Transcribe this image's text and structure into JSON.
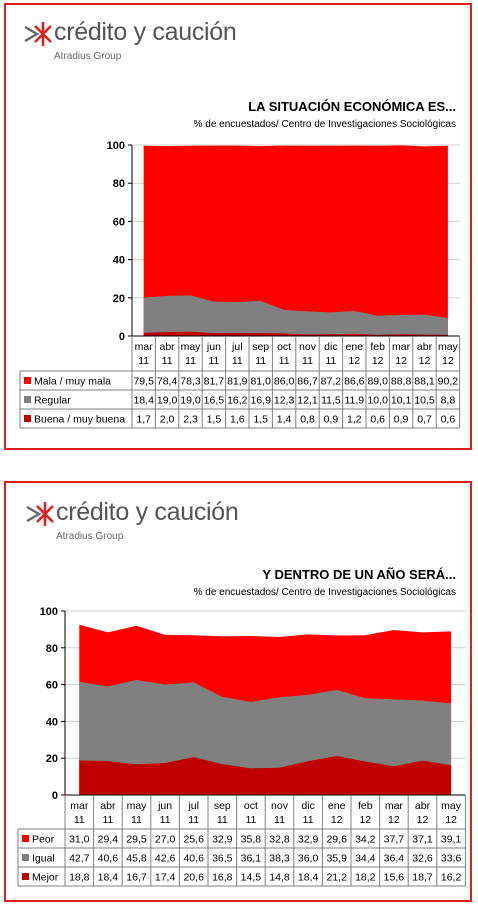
{
  "charts": [
    {
      "logo": {
        "name": "crédito y caución",
        "group": "Atradius Group"
      },
      "title": "LA SITUACIÓN ECONÓMICA ES...",
      "subtitle": "% de encuestados/ Centro de Investigaciones Sociológicas",
      "categories": [
        [
          "mar",
          "11"
        ],
        [
          "abr",
          "11"
        ],
        [
          "may",
          "11"
        ],
        [
          "jun",
          "11"
        ],
        [
          "jul",
          "11"
        ],
        [
          "sep",
          "11"
        ],
        [
          "oct",
          "11"
        ],
        [
          "nov",
          "11"
        ],
        [
          "dic",
          "11"
        ],
        [
          "ene",
          "12"
        ],
        [
          "feb",
          "12"
        ],
        [
          "mar",
          "12"
        ],
        [
          "abr",
          "12"
        ],
        [
          "may",
          "12"
        ]
      ],
      "yticks": [
        "0",
        "20",
        "40",
        "60",
        "80",
        "100"
      ],
      "series": [
        {
          "name": "Mala / muy mala",
          "color": "#ff0000",
          "values": [
            79.5,
            78.4,
            78.3,
            81.7,
            81.9,
            81.0,
            86.0,
            86.7,
            87.2,
            86.6,
            89.0,
            88.8,
            88.1,
            90.2
          ],
          "labels": [
            "79,5",
            "78,4",
            "78,3",
            "81,7",
            "81,9",
            "81,0",
            "86,0",
            "86,7",
            "87,2",
            "86,6",
            "89,0",
            "88,8",
            "88,1",
            "90,2"
          ]
        },
        {
          "name": "Regular",
          "color": "#808080",
          "values": [
            18.4,
            19.0,
            19.0,
            16.5,
            16.2,
            16.9,
            12.3,
            12.1,
            11.5,
            11.9,
            10.0,
            10.1,
            10.5,
            8.8
          ],
          "labels": [
            "18,4",
            "19,0",
            "19,0",
            "16,5",
            "16,2",
            "16,9",
            "12,3",
            "12,1",
            "11,5",
            "11,9",
            "10,0",
            "10,1",
            "10,5",
            "8,8"
          ]
        },
        {
          "name": "Buena / muy buena",
          "color": "#c00000",
          "values": [
            1.7,
            2.0,
            2.3,
            1.5,
            1.6,
            1.5,
            1.4,
            0.8,
            0.9,
            1.2,
            0.6,
            0.9,
            0.7,
            0.6
          ],
          "labels": [
            "1,7",
            "2,0",
            "2,3",
            "1,5",
            "1,6",
            "1,5",
            "1,4",
            "0,8",
            "0,9",
            "1,2",
            "0,6",
            "0,9",
            "0,7",
            "0,6"
          ]
        }
      ]
    },
    {
      "logo": {
        "name": "crédito y caución",
        "group": "Atradius Group"
      },
      "title": "Y DENTRO DE UN AÑO SERÁ...",
      "subtitle": "% de encuestados/ Centro de Investigaciones Sociológicas",
      "categories": [
        [
          "mar",
          "11"
        ],
        [
          "abr",
          "11"
        ],
        [
          "may",
          "11"
        ],
        [
          "jun",
          "11"
        ],
        [
          "jul",
          "11"
        ],
        [
          "sep",
          "11"
        ],
        [
          "oct",
          "11"
        ],
        [
          "nov",
          "11"
        ],
        [
          "dic",
          "11"
        ],
        [
          "ene",
          "12"
        ],
        [
          "feb",
          "12"
        ],
        [
          "mar",
          "12"
        ],
        [
          "abr",
          "12"
        ],
        [
          "may",
          "12"
        ]
      ],
      "yticks": [
        "0",
        "20",
        "40",
        "60",
        "80",
        "100"
      ],
      "series": [
        {
          "name": "Peor",
          "color": "#ff0000",
          "values": [
            31.0,
            29.4,
            29.5,
            27.0,
            25.6,
            32.9,
            35.8,
            32.8,
            32.9,
            29.6,
            34.2,
            37.7,
            37.1,
            39.1
          ],
          "labels": [
            "31,0",
            "29,4",
            "29,5",
            "27,0",
            "25,6",
            "32,9",
            "35,8",
            "32,8",
            "32,9",
            "29,6",
            "34,2",
            "37,7",
            "37,1",
            "39,1"
          ]
        },
        {
          "name": "Igual",
          "color": "#808080",
          "values": [
            42.7,
            40.6,
            45.8,
            42.6,
            40.6,
            36.5,
            36.1,
            38.3,
            36.0,
            35.9,
            34.4,
            36.4,
            32.6,
            33.6
          ],
          "labels": [
            "42,7",
            "40,6",
            "45,8",
            "42,6",
            "40,6",
            "36,5",
            "36,1",
            "38,3",
            "36,0",
            "35,9",
            "34,4",
            "36,4",
            "32,6",
            "33,6"
          ]
        },
        {
          "name": "Mejor",
          "color": "#c00000",
          "values": [
            18.8,
            18.4,
            16.7,
            17.4,
            20.6,
            16.8,
            14.5,
            14.8,
            18.4,
            21.2,
            18.2,
            15.6,
            18.7,
            16.2
          ],
          "labels": [
            "18,8",
            "18,4",
            "16,7",
            "17,4",
            "20,6",
            "16,8",
            "14,5",
            "14,8",
            "18,4",
            "21,2",
            "18,2",
            "15,6",
            "18,7",
            "16,2"
          ]
        }
      ]
    }
  ],
  "chart_data": [
    {
      "type": "area",
      "title": "LA SITUACIÓN ECONÓMICA ES...",
      "subtitle": "% de encuestados/ Centro de Investigaciones Sociológicas",
      "categories": [
        "mar 11",
        "abr 11",
        "may 11",
        "jun 11",
        "jul 11",
        "sep 11",
        "oct 11",
        "nov 11",
        "dic 11",
        "ene 12",
        "feb 12",
        "mar 12",
        "abr 12",
        "may 12"
      ],
      "stacked": true,
      "ylim": [
        0,
        100
      ],
      "grid": true,
      "legend": "table-below",
      "series": [
        {
          "name": "Mala / muy mala",
          "values": [
            79.5,
            78.4,
            78.3,
            81.7,
            81.9,
            81.0,
            86.0,
            86.7,
            87.2,
            86.6,
            89.0,
            88.8,
            88.1,
            90.2
          ]
        },
        {
          "name": "Regular",
          "values": [
            18.4,
            19.0,
            19.0,
            16.5,
            16.2,
            16.9,
            12.3,
            12.1,
            11.5,
            11.9,
            10.0,
            10.1,
            10.5,
            8.8
          ]
        },
        {
          "name": "Buena / muy buena",
          "values": [
            1.7,
            2.0,
            2.3,
            1.5,
            1.6,
            1.5,
            1.4,
            0.8,
            0.9,
            1.2,
            0.6,
            0.9,
            0.7,
            0.6
          ]
        }
      ]
    },
    {
      "type": "area",
      "title": "Y DENTRO DE UN AÑO SERÁ...",
      "subtitle": "% de encuestados/ Centro de Investigaciones Sociológicas",
      "categories": [
        "mar 11",
        "abr 11",
        "may 11",
        "jun 11",
        "jul 11",
        "sep 11",
        "oct 11",
        "nov 11",
        "dic 11",
        "ene 12",
        "feb 12",
        "mar 12",
        "abr 12",
        "may 12"
      ],
      "stacked": true,
      "ylim": [
        0,
        100
      ],
      "grid": true,
      "legend": "table-below",
      "series": [
        {
          "name": "Peor",
          "values": [
            31.0,
            29.4,
            29.5,
            27.0,
            25.6,
            32.9,
            35.8,
            32.8,
            32.9,
            29.6,
            34.2,
            37.7,
            37.1,
            39.1
          ]
        },
        {
          "name": "Igual",
          "values": [
            42.7,
            40.6,
            45.8,
            42.6,
            40.6,
            36.5,
            36.1,
            38.3,
            36.0,
            35.9,
            34.4,
            36.4,
            32.6,
            33.6
          ]
        },
        {
          "name": "Mejor",
          "values": [
            18.8,
            18.4,
            16.7,
            17.4,
            20.6,
            16.8,
            14.5,
            14.8,
            18.4,
            21.2,
            18.2,
            15.6,
            18.7,
            16.2
          ]
        }
      ]
    }
  ]
}
